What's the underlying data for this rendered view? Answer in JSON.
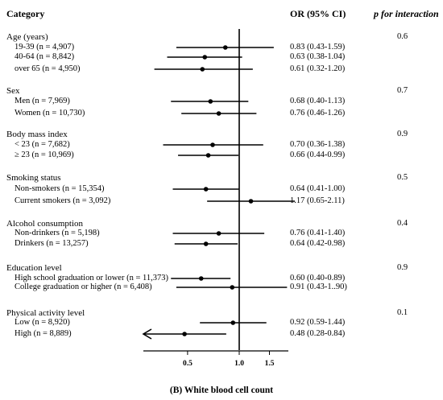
{
  "headers": {
    "category": "Category",
    "or_ci": "OR (95% CI)",
    "p_interaction": "p for interaction"
  },
  "caption": "(B) White blood cell count",
  "chart_data": {
    "type": "forest",
    "title": "",
    "xlabel": "",
    "ylabel": "",
    "x_scale": "log",
    "xlim": [
      0.31,
      2.2
    ],
    "reference_line": 1.0,
    "x_ticks": [
      {
        "value": 0.5,
        "label": "0.5"
      },
      {
        "value": 1.0,
        "label": "1.0"
      },
      {
        "value": 1.5,
        "label": "1.5"
      }
    ],
    "groups": [
      {
        "name": "Age (years)",
        "p_interaction": "0.6",
        "rows": [
          {
            "label": "19-39 (n = 4,907)",
            "or": 0.83,
            "lo": 0.43,
            "hi": 1.59,
            "ci_text": "0.83 (0.43-1.59)"
          },
          {
            "label": "40-64 (n = 8,842)",
            "or": 0.63,
            "lo": 0.38,
            "hi": 1.04,
            "ci_text": "0.63 (0.38-1.04)"
          },
          {
            "label": "over 65 (n = 4,950)",
            "or": 0.61,
            "lo": 0.32,
            "hi": 1.2,
            "ci_text": "0.61 (0.32-1.20)"
          }
        ]
      },
      {
        "name": "Sex",
        "p_interaction": "0.7",
        "rows": [
          {
            "label": "Men (n = 7,969)",
            "or": 0.68,
            "lo": 0.4,
            "hi": 1.13,
            "ci_text": "0.68 (0.40-1.13)"
          },
          {
            "label": "Women (n = 10,730)",
            "or": 0.76,
            "lo": 0.46,
            "hi": 1.26,
            "ci_text": "0.76 (0.46-1.26)"
          }
        ]
      },
      {
        "name": "Body mass index",
        "p_interaction": "0.9",
        "rows": [
          {
            "label": "< 23 (n = 7,682)",
            "or": 0.7,
            "lo": 0.36,
            "hi": 1.38,
            "ci_text": "0.70 (0.36-1.38)"
          },
          {
            "label": "≥ 23 (n = 10,969)",
            "or": 0.66,
            "lo": 0.44,
            "hi": 0.99,
            "ci_text": "0.66 (0.44-0.99)"
          }
        ]
      },
      {
        "name": "Smoking status",
        "p_interaction": "0.5",
        "rows": [
          {
            "label": "Non-smokers (n = 15,354)",
            "or": 0.64,
            "lo": 0.41,
            "hi": 1.0,
            "ci_text": "0.64 (0.41-1.00)"
          },
          {
            "label": "Current smokers (n = 3,092)",
            "or": 1.17,
            "lo": 0.65,
            "hi": 2.11,
            "ci_text": "1.17 (0.65-2.11)"
          }
        ]
      },
      {
        "name": "Alcohol consumption",
        "p_interaction": "0.4",
        "rows": [
          {
            "label": "Non-drinkers (n = 5,198)",
            "or": 0.76,
            "lo": 0.41,
            "hi": 1.4,
            "ci_text": "0.76 (0.41-1.40)"
          },
          {
            "label": "Drinkers (n = 13,257)",
            "or": 0.64,
            "lo": 0.42,
            "hi": 0.98,
            "ci_text": "0.64 (0.42-0.98)"
          }
        ]
      },
      {
        "name": "Education level",
        "p_interaction": "0.9",
        "rows": [
          {
            "label": "High school graduation or lower (n = 11,373)",
            "or": 0.6,
            "lo": 0.4,
            "hi": 0.89,
            "ci_text": "0.60 (0.40-0.89)"
          },
          {
            "label": "College graduation or higher (n = 6,408)",
            "or": 0.91,
            "lo": 0.43,
            "hi": 1.9,
            "ci_text": "0.91 (0.43-1..90)"
          }
        ]
      },
      {
        "name": "Physical activity level",
        "p_interaction": "0.1",
        "rows": [
          {
            "label": "Low (n = 8,920)",
            "or": 0.92,
            "lo": 0.59,
            "hi": 1.44,
            "ci_text": "0.92 (0.59-1.44)"
          },
          {
            "label": "High (n = 8,889)",
            "or": 0.48,
            "lo": 0.28,
            "hi": 0.84,
            "ci_text": "0.48 (0.28-0.84)",
            "lower_truncated": true
          }
        ]
      }
    ]
  }
}
